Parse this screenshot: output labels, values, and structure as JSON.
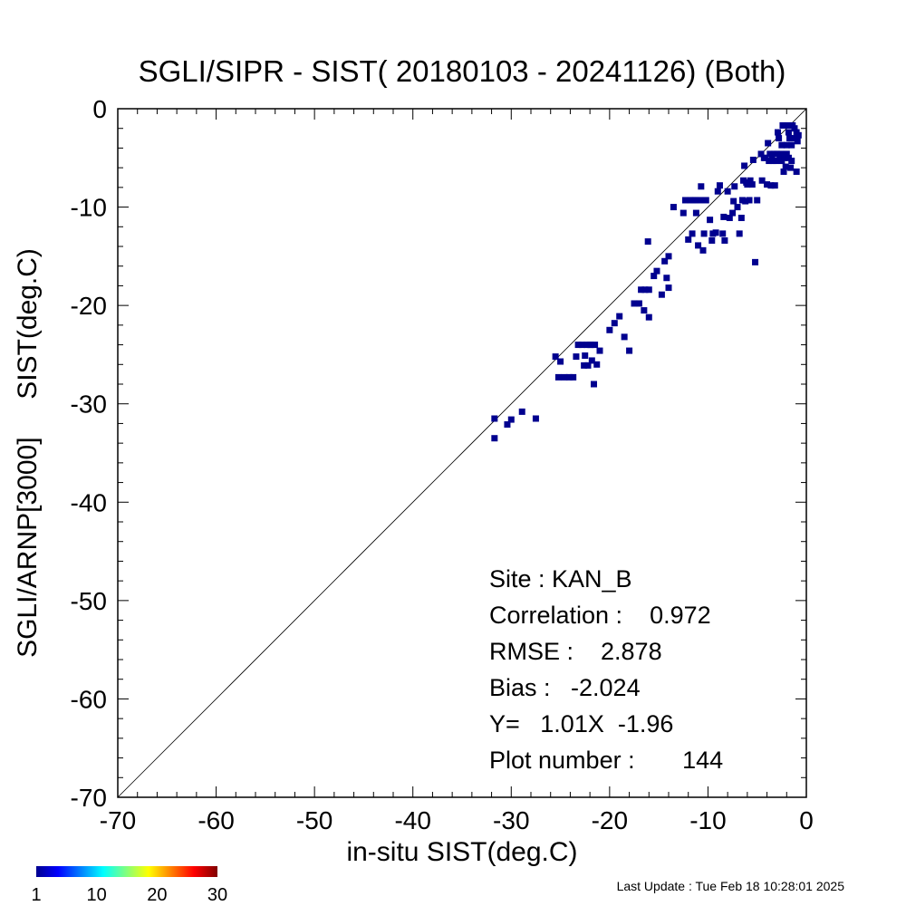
{
  "chart_data": {
    "type": "scatter",
    "title": "SGLI/SIPR - SIST( 20180103 - 20241126) (Both)",
    "xlabel": "in-situ SIST(deg.C)",
    "ylabel": "SGLI/ARNP[3000]     SIST(deg.C)",
    "xlim": [
      -70,
      0
    ],
    "ylim": [
      -70,
      0
    ],
    "xticks": [
      -70,
      -60,
      -50,
      -40,
      -30,
      -20,
      -10,
      0
    ],
    "yticks": [
      -70,
      -60,
      -50,
      -40,
      -30,
      -20,
      -10,
      0
    ],
    "xtick_labels": [
      "-70",
      "-60",
      "-50",
      "-40",
      "-30",
      "-20",
      "-10",
      "0"
    ],
    "ytick_labels": [
      "-70",
      "-60",
      "-50",
      "-40",
      "-30",
      "-20",
      "-10",
      "0"
    ],
    "reference_line": "1:1",
    "grid": false,
    "point_color": "#00008f",
    "points": [
      [
        -31.7,
        -31.5
      ],
      [
        -31.7,
        -33.5
      ],
      [
        -30.4,
        -32.1
      ],
      [
        -30.0,
        -31.6
      ],
      [
        -28.9,
        -30.8
      ],
      [
        -27.5,
        -31.5
      ],
      [
        -25.5,
        -25.2
      ],
      [
        -25.2,
        -27.3
      ],
      [
        -25.0,
        -25.7
      ],
      [
        -24.6,
        -27.3
      ],
      [
        -24.1,
        -27.3
      ],
      [
        -23.7,
        -27.3
      ],
      [
        -23.4,
        -25.2
      ],
      [
        -23.2,
        -24.0
      ],
      [
        -22.8,
        -24.0
      ],
      [
        -22.6,
        -26.1
      ],
      [
        -22.5,
        -25.1
      ],
      [
        -22.3,
        -24.0
      ],
      [
        -22.2,
        -26.1
      ],
      [
        -21.9,
        -24.0
      ],
      [
        -21.8,
        -25.6
      ],
      [
        -21.6,
        -28.0
      ],
      [
        -21.5,
        -24.0
      ],
      [
        -21.3,
        -26.0
      ],
      [
        -21.0,
        -24.6
      ],
      [
        -20.0,
        -22.5
      ],
      [
        -19.5,
        -21.8
      ],
      [
        -19.0,
        -21.1
      ],
      [
        -18.5,
        -23.2
      ],
      [
        -18.0,
        -24.6
      ],
      [
        -17.5,
        -19.8
      ],
      [
        -17.0,
        -19.8
      ],
      [
        -16.8,
        -18.4
      ],
      [
        -16.5,
        -20.5
      ],
      [
        -16.4,
        -18.4
      ],
      [
        -16.1,
        -13.5
      ],
      [
        -16.0,
        -21.2
      ],
      [
        -16.0,
        -18.4
      ],
      [
        -15.5,
        -17.0
      ],
      [
        -15.2,
        -16.5
      ],
      [
        -14.7,
        -18.9
      ],
      [
        -14.4,
        -15.5
      ],
      [
        -14.2,
        -17.2
      ],
      [
        -14.0,
        -18.2
      ],
      [
        -14.0,
        -15.0
      ],
      [
        -13.5,
        -10.0
      ],
      [
        -12.5,
        -10.6
      ],
      [
        -12.3,
        -9.3
      ],
      [
        -12.0,
        -13.3
      ],
      [
        -11.8,
        -9.3
      ],
      [
        -11.6,
        -12.7
      ],
      [
        -11.3,
        -9.3
      ],
      [
        -11.2,
        -10.6
      ],
      [
        -11.0,
        -13.9
      ],
      [
        -10.8,
        -9.3
      ],
      [
        -10.7,
        -7.9
      ],
      [
        -10.5,
        -14.4
      ],
      [
        -10.4,
        -12.7
      ],
      [
        -10.2,
        -9.3
      ],
      [
        -9.8,
        -11.3
      ],
      [
        -9.6,
        -13.4
      ],
      [
        -9.5,
        -12.7
      ],
      [
        -9.2,
        -12.6
      ],
      [
        -9.0,
        -8.4
      ],
      [
        -8.8,
        -7.8
      ],
      [
        -8.5,
        -12.7
      ],
      [
        -8.4,
        -11.0
      ],
      [
        -8.3,
        -13.4
      ],
      [
        -8.0,
        -8.4
      ],
      [
        -7.8,
        -11.1
      ],
      [
        -7.5,
        -10.6
      ],
      [
        -7.4,
        -9.4
      ],
      [
        -7.3,
        -7.9
      ],
      [
        -7.0,
        -10.0
      ],
      [
        -6.8,
        -12.7
      ],
      [
        -6.6,
        -11.1
      ],
      [
        -6.5,
        -9.3
      ],
      [
        -6.4,
        -7.3
      ],
      [
        -6.3,
        -5.8
      ],
      [
        -6.2,
        -9.4
      ],
      [
        -6.0,
        -7.7
      ],
      [
        -5.8,
        -9.3
      ],
      [
        -5.7,
        -7.3
      ],
      [
        -5.5,
        -7.7
      ],
      [
        -5.4,
        -5.2
      ],
      [
        -5.2,
        -15.6
      ],
      [
        -5.0,
        -9.3
      ],
      [
        -4.5,
        -7.3
      ],
      [
        -4.2,
        -5.0
      ],
      [
        -4.0,
        -7.7
      ],
      [
        -3.9,
        -3.5
      ],
      [
        -3.8,
        -5.3
      ],
      [
        -3.7,
        -4.6
      ],
      [
        -3.6,
        -7.8
      ],
      [
        -3.5,
        -5.0
      ],
      [
        -3.3,
        -4.6
      ],
      [
        -3.2,
        -7.8
      ],
      [
        -3.1,
        -5.3
      ],
      [
        -3.0,
        -4.6
      ],
      [
        -2.9,
        -2.4
      ],
      [
        -2.8,
        -3.0
      ],
      [
        -2.7,
        -5.0
      ],
      [
        -2.6,
        -4.6
      ],
      [
        -2.5,
        -5.3
      ],
      [
        -2.5,
        -3.7
      ],
      [
        -2.4,
        -1.7
      ],
      [
        -2.3,
        -6.4
      ],
      [
        -2.2,
        -5.0
      ],
      [
        -2.1,
        -5.9
      ],
      [
        -2.0,
        -3.7
      ],
      [
        -2.0,
        -4.6
      ],
      [
        -1.9,
        -1.7
      ],
      [
        -1.8,
        -5.0
      ],
      [
        -1.8,
        -2.4
      ],
      [
        -1.7,
        -3.0
      ],
      [
        -1.6,
        -6.0
      ],
      [
        -1.5,
        -5.3
      ],
      [
        -1.5,
        -3.7
      ],
      [
        -1.4,
        -1.7
      ],
      [
        -1.3,
        -3.0
      ],
      [
        -1.2,
        -2.0
      ],
      [
        -1.0,
        -2.4
      ],
      [
        -0.9,
        -3.3
      ],
      [
        -1.0,
        -6.4
      ],
      [
        -0.8,
        -2.7
      ],
      [
        -3.4,
        -5.3
      ],
      [
        -4.3,
        -5.0
      ],
      [
        -4.6,
        -4.6
      ],
      [
        -6.1,
        -7.5
      ],
      [
        -11.5,
        -9.3
      ],
      [
        -22.0,
        -24.0
      ]
    ],
    "annotations": {
      "site": "Site : KAN_B",
      "correlation": "Correlation :    0.972",
      "rmse": "RMSE :    2.878",
      "bias": "Bias :   -2.024",
      "regression": "Y=   1.01X  -1.96",
      "plot_number": "Plot number :       144"
    },
    "colorbar": {
      "tick_labels": [
        "1",
        "10",
        "20",
        "30"
      ],
      "values": [
        1,
        10,
        20,
        30
      ]
    },
    "last_update": "Last Update : Tue Feb 18 10:28:01 2025"
  }
}
